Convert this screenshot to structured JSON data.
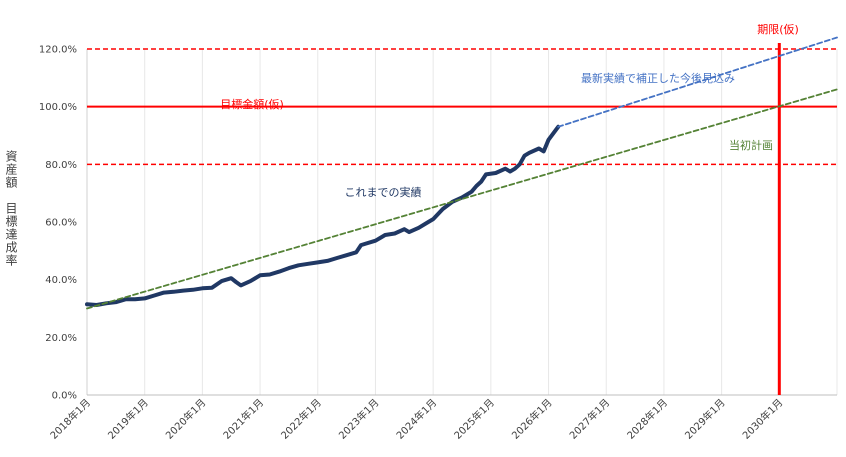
{
  "chart_data": {
    "type": "line",
    "ylabel": "資産額　目標達成率",
    "x_ticks": [
      "2018年1月",
      "2019年1月",
      "2020年1月",
      "2021年1月",
      "2022年1月",
      "2023年1月",
      "2024年1月",
      "2025年1月",
      "2026年1月",
      "2027年1月",
      "2028年1月",
      "2029年1月",
      "2030年1月"
    ],
    "xlim": [
      "2018-01",
      "2031-01"
    ],
    "ylim": [
      0,
      1.2
    ],
    "y_ticks": [
      "0.0%",
      "20.0%",
      "40.0%",
      "60.0%",
      "80.0%",
      "100.0%",
      "120.0%"
    ],
    "grid": "vertical",
    "series": [
      {
        "name": "これまでの実績",
        "color": "#203864",
        "style": "solid",
        "points": [
          [
            "2018-01",
            0.315
          ],
          [
            "2018-03",
            0.312
          ],
          [
            "2018-05",
            0.318
          ],
          [
            "2018-07",
            0.322
          ],
          [
            "2018-09",
            0.332
          ],
          [
            "2018-11",
            0.332
          ],
          [
            "2019-01",
            0.335
          ],
          [
            "2019-03",
            0.345
          ],
          [
            "2019-05",
            0.355
          ],
          [
            "2019-07",
            0.358
          ],
          [
            "2019-09",
            0.362
          ],
          [
            "2019-11",
            0.365
          ],
          [
            "2020-01",
            0.37
          ],
          [
            "2020-03",
            0.372
          ],
          [
            "2020-05",
            0.395
          ],
          [
            "2020-07",
            0.405
          ],
          [
            "2020-08",
            0.392
          ],
          [
            "2020-09",
            0.38
          ],
          [
            "2020-11",
            0.395
          ],
          [
            "2021-01",
            0.415
          ],
          [
            "2021-03",
            0.418
          ],
          [
            "2021-05",
            0.428
          ],
          [
            "2021-07",
            0.44
          ],
          [
            "2021-09",
            0.45
          ],
          [
            "2021-11",
            0.455
          ],
          [
            "2022-01",
            0.46
          ],
          [
            "2022-03",
            0.465
          ],
          [
            "2022-05",
            0.475
          ],
          [
            "2022-07",
            0.485
          ],
          [
            "2022-09",
            0.495
          ],
          [
            "2022-10",
            0.52
          ],
          [
            "2022-11",
            0.525
          ],
          [
            "2023-01",
            0.535
          ],
          [
            "2023-02",
            0.545
          ],
          [
            "2023-03",
            0.555
          ],
          [
            "2023-05",
            0.56
          ],
          [
            "2023-07",
            0.575
          ],
          [
            "2023-08",
            0.565
          ],
          [
            "2023-10",
            0.58
          ],
          [
            "2023-12",
            0.6
          ],
          [
            "2024-01",
            0.61
          ],
          [
            "2024-03",
            0.645
          ],
          [
            "2024-05",
            0.67
          ],
          [
            "2024-07",
            0.685
          ],
          [
            "2024-09",
            0.705
          ],
          [
            "2024-10",
            0.725
          ],
          [
            "2024-11",
            0.74
          ],
          [
            "2024-12",
            0.765
          ],
          [
            "2025-02",
            0.77
          ],
          [
            "2025-04",
            0.785
          ],
          [
            "2025-05",
            0.775
          ],
          [
            "2025-06",
            0.785
          ],
          [
            "2025-07",
            0.8
          ],
          [
            "2025-08",
            0.83
          ],
          [
            "2025-09",
            0.84
          ],
          [
            "2025-11",
            0.855
          ],
          [
            "2025-12",
            0.845
          ],
          [
            "2026-01",
            0.885
          ],
          [
            "2026-03",
            0.93
          ]
        ]
      },
      {
        "name": "最新実績で補正した今後見込み",
        "color": "#4472c4",
        "style": "dashed",
        "points": [
          [
            "2026-03",
            0.93
          ],
          [
            "2031-01",
            1.24
          ]
        ]
      },
      {
        "name": "当初計画",
        "color": "#548235",
        "style": "dashed",
        "points": [
          [
            "2018-01",
            0.3
          ],
          [
            "2031-01",
            1.06
          ]
        ]
      }
    ],
    "reference_lines": [
      {
        "axis": "y",
        "value": 1.0,
        "label": "目標金額(仮)",
        "color": "#ff0000",
        "style": "solid"
      },
      {
        "axis": "y",
        "value": 1.2,
        "color": "#ff0000",
        "style": "dashed"
      },
      {
        "axis": "y",
        "value": 0.8,
        "color": "#ff0000",
        "style": "dashed"
      },
      {
        "axis": "x",
        "value": "2030-01",
        "label": "期限(仮)",
        "color": "#ff0000",
        "style": "solid"
      }
    ],
    "annotations": [
      {
        "text": "最新実績で補正した今後見込み",
        "color": "#4472c4"
      },
      {
        "text": "当初計画",
        "color": "#548235"
      },
      {
        "text": "これまでの実績",
        "color": "#203864"
      },
      {
        "text": "目標金額(仮)",
        "color": "#ff0000"
      },
      {
        "text": "期限(仮)",
        "color": "#ff0000"
      }
    ]
  }
}
